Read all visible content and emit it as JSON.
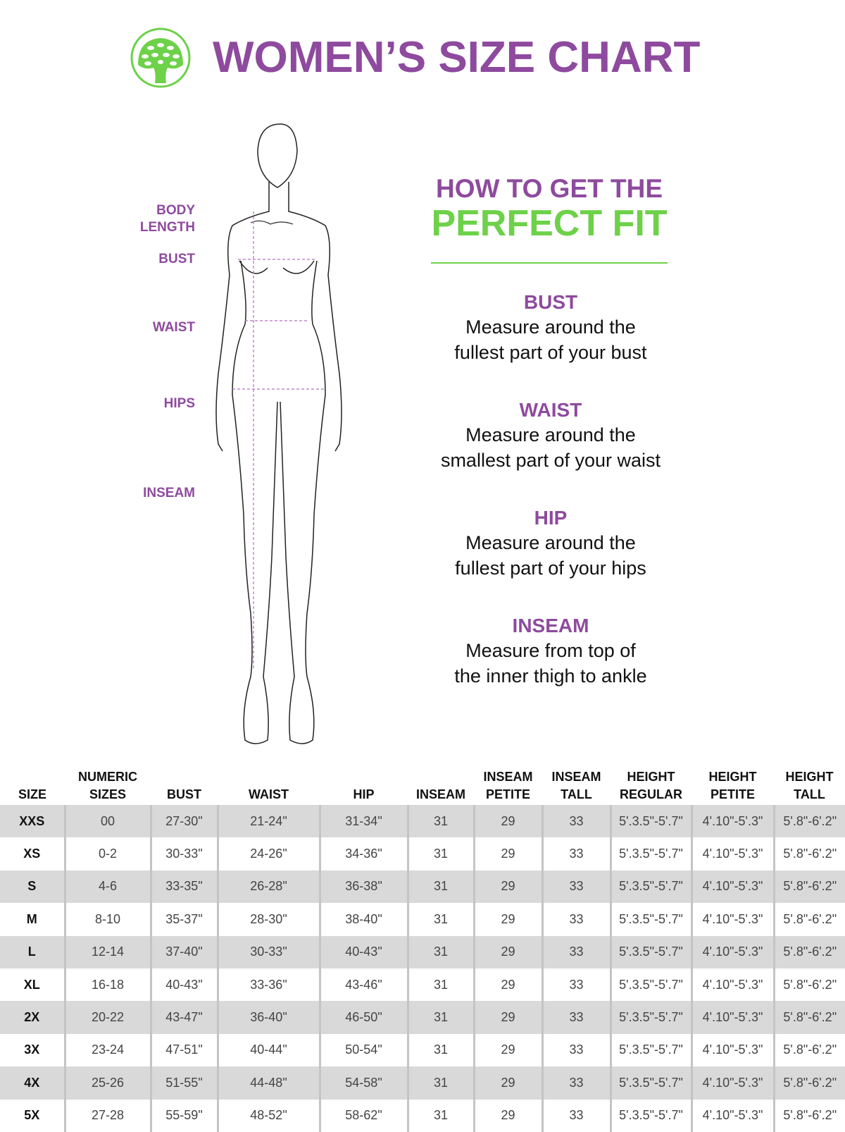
{
  "title": "WOMEN’S SIZE CHART",
  "colors": {
    "purple": "#8e4a9e",
    "green": "#6dd149",
    "row_shade": "#d9d9d9"
  },
  "logo": {
    "icon": "tree-logo"
  },
  "figure_labels": [
    "BODY LENGTH",
    "BUST",
    "WAIST",
    "HIPS",
    "INSEAM"
  ],
  "guide": {
    "heading_line1": "HOW TO GET THE",
    "heading_line2": "PERFECT FIT",
    "sections": [
      {
        "title": "BUST",
        "line1": "Measure around the",
        "line2": "fullest part of your bust"
      },
      {
        "title": "WAIST",
        "line1": "Measure around the",
        "line2": "smallest part of your waist"
      },
      {
        "title": "HIP",
        "line1": "Measure around the",
        "line2": "fullest part of your hips"
      },
      {
        "title": "INSEAM",
        "line1": "Measure from top of",
        "line2": "the inner thigh to ankle"
      }
    ]
  },
  "table": {
    "headers": [
      [
        "SIZE"
      ],
      [
        "NUMERIC",
        "SIZES"
      ],
      [
        "BUST"
      ],
      [
        "WAIST"
      ],
      [
        "HIP"
      ],
      [
        "INSEAM"
      ],
      [
        "INSEAM",
        "PETITE"
      ],
      [
        "INSEAM",
        "TALL"
      ],
      [
        "HEIGHT",
        "REGULAR"
      ],
      [
        "HEIGHT",
        "PETITE"
      ],
      [
        "HEIGHT",
        "TALL"
      ]
    ],
    "rows": [
      [
        "XXS",
        "00",
        "27-30\"",
        "21-24\"",
        "31-34\"",
        "31",
        "29",
        "33",
        "5'.3.5\"-5'.7\"",
        "4'.10\"-5'.3\"",
        "5'.8\"-6'.2\""
      ],
      [
        "XS",
        "0-2",
        "30-33\"",
        "24-26\"",
        "34-36\"",
        "31",
        "29",
        "33",
        "5'.3.5\"-5'.7\"",
        "4'.10\"-5'.3\"",
        "5'.8\"-6'.2\""
      ],
      [
        "S",
        "4-6",
        "33-35\"",
        "26-28\"",
        "36-38\"",
        "31",
        "29",
        "33",
        "5'.3.5\"-5'.7\"",
        "4'.10\"-5'.3\"",
        "5'.8\"-6'.2\""
      ],
      [
        "M",
        "8-10",
        "35-37\"",
        "28-30\"",
        "38-40\"",
        "31",
        "29",
        "33",
        "5'.3.5\"-5'.7\"",
        "4'.10\"-5'.3\"",
        "5'.8\"-6'.2\""
      ],
      [
        "L",
        "12-14",
        "37-40\"",
        "30-33\"",
        "40-43\"",
        "31",
        "29",
        "33",
        "5'.3.5\"-5'.7\"",
        "4'.10\"-5'.3\"",
        "5'.8\"-6'.2\""
      ],
      [
        "XL",
        "16-18",
        "40-43\"",
        "33-36\"",
        "43-46\"",
        "31",
        "29",
        "33",
        "5'.3.5\"-5'.7\"",
        "4'.10\"-5'.3\"",
        "5'.8\"-6'.2\""
      ],
      [
        "2X",
        "20-22",
        "43-47\"",
        "36-40\"",
        "46-50\"",
        "31",
        "29",
        "33",
        "5'.3.5\"-5'.7\"",
        "4'.10\"-5'.3\"",
        "5'.8\"-6'.2\""
      ],
      [
        "3X",
        "23-24",
        "47-51\"",
        "40-44\"",
        "50-54\"",
        "31",
        "29",
        "33",
        "5'.3.5\"-5'.7\"",
        "4'.10\"-5'.3\"",
        "5'.8\"-6'.2\""
      ],
      [
        "4X",
        "25-26",
        "51-55\"",
        "44-48\"",
        "54-58\"",
        "31",
        "29",
        "33",
        "5'.3.5\"-5'.7\"",
        "4'.10\"-5'.3\"",
        "5'.8\"-6'.2\""
      ],
      [
        "5X",
        "27-28",
        "55-59\"",
        "48-52\"",
        "58-62\"",
        "31",
        "29",
        "33",
        "5'.3.5\"-5'.7\"",
        "4'.10\"-5'.3\"",
        "5'.8\"-6'.2\""
      ]
    ]
  }
}
